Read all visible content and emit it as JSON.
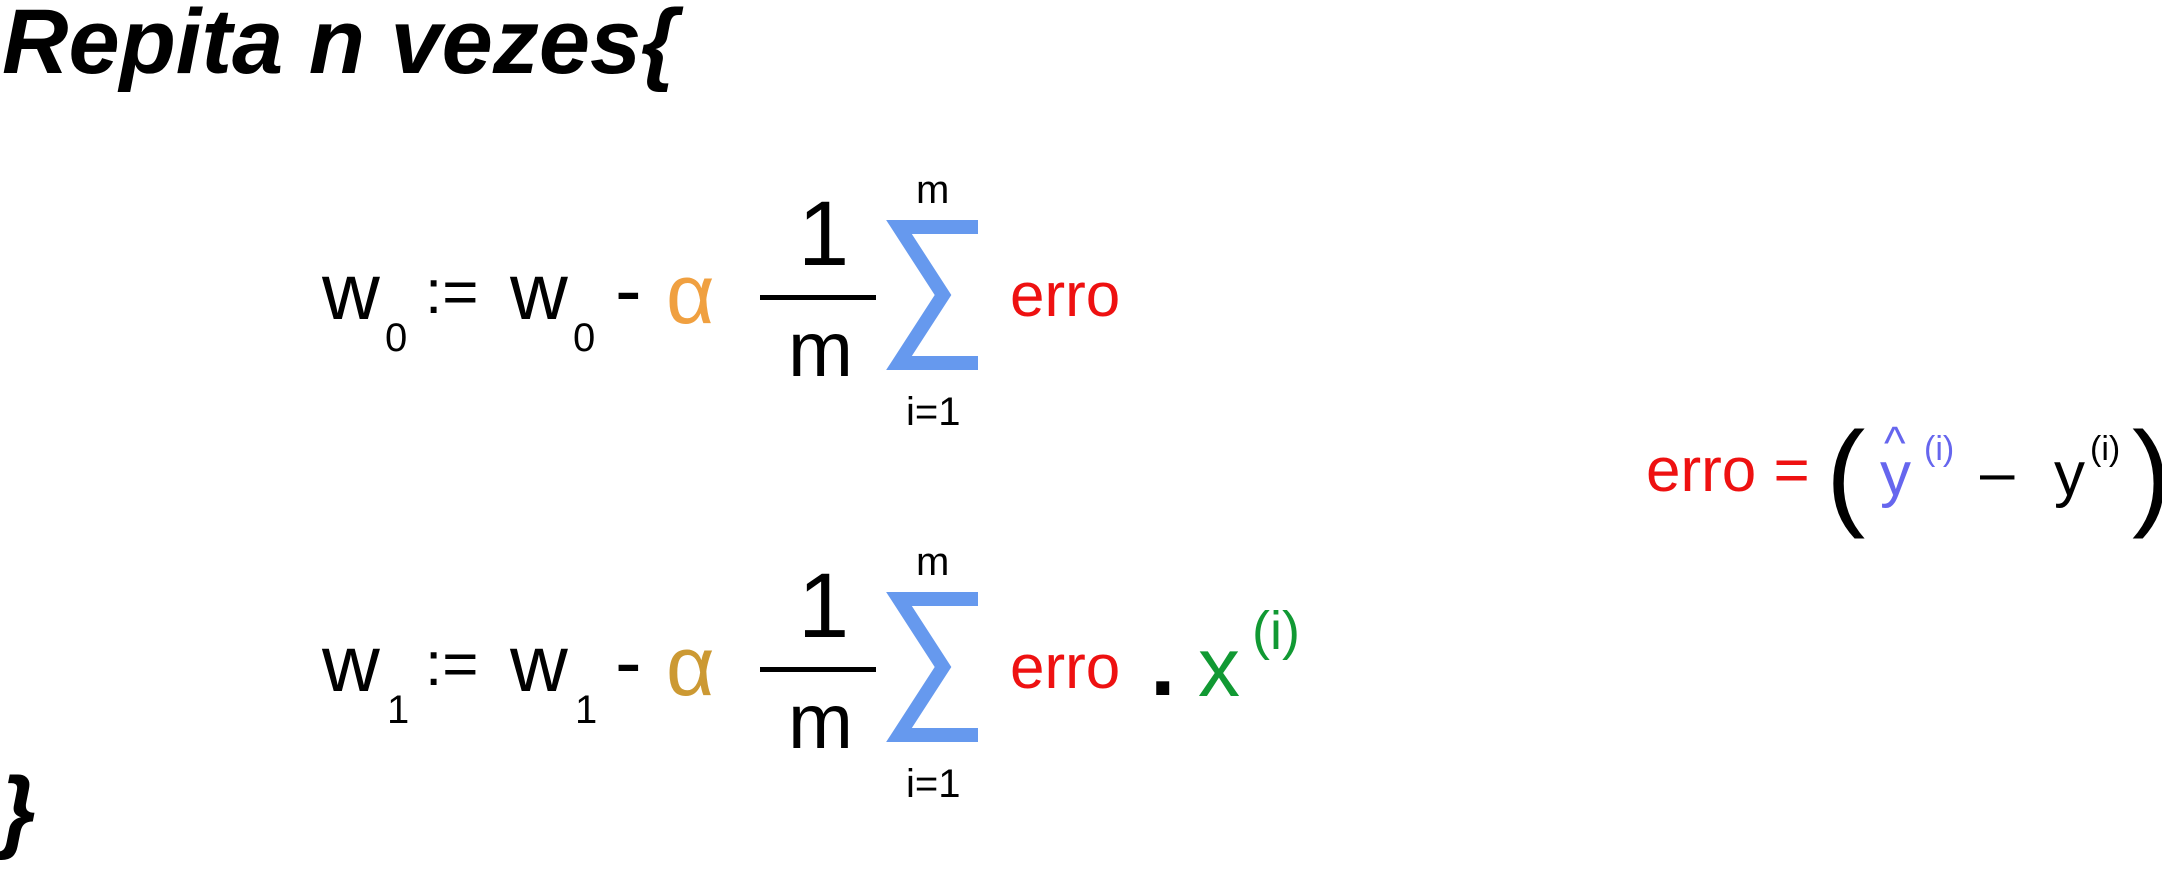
{
  "header": {
    "open": "Repita  n vezes{",
    "close": "}"
  },
  "eq0": {
    "w": "w",
    "w_sub": "0",
    "assign": ":=",
    "minus": "-",
    "alpha": "α",
    "num": "1",
    "den": "m",
    "sum_upper": "m",
    "sum_lower": "i=1",
    "err": "erro"
  },
  "eq1": {
    "w": "w",
    "w_sub": "1",
    "assign": ":=",
    "minus": "-",
    "alpha": "α",
    "num": "1",
    "den": "m",
    "sum_upper": "m",
    "sum_lower": "i=1",
    "err": "erro",
    "dot": ".",
    "x": "x",
    "x_sup": "(i)"
  },
  "error_def": {
    "lhs": "erro =",
    "open_paren": "(",
    "hat": "^",
    "yhat": "y",
    "yhat_sup": "(i)",
    "minus": "–",
    "y": "y",
    "y_sup": "(i)",
    "close_paren": ")"
  },
  "colors": {
    "alpha0": "#f0a040",
    "alpha1": "#cc9933",
    "sigma": "#6699ee",
    "error": "#ee1111",
    "x": "#119933",
    "yhat": "#6666ee"
  }
}
